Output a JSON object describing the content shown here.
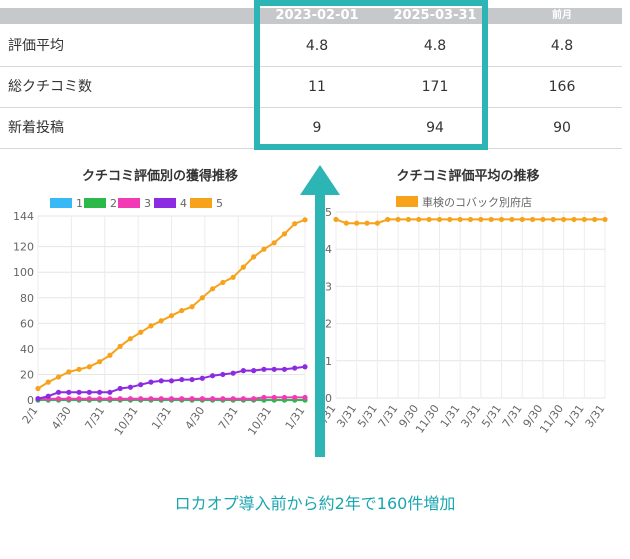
{
  "table": {
    "headers": [
      "2023-02-01",
      "2025-03-31",
      "前月"
    ],
    "rows": [
      {
        "label": "評価平均",
        "values": [
          "4.8",
          "4.8",
          "4.8"
        ]
      },
      {
        "label": "総クチコミ数",
        "values": [
          "11",
          "171",
          "166"
        ]
      },
      {
        "label": "新着投稿",
        "values": [
          "9",
          "94",
          "90"
        ]
      }
    ]
  },
  "caption": "ロカオプ導入前から約2年で160件増加",
  "colors": {
    "highlight": "#2cb5b4",
    "arrow": "#2cb5b4"
  },
  "chart_data": [
    {
      "type": "line",
      "title": "クチコミ評価別の獲得推移",
      "x_ticks": [
        "2/1",
        "4/30",
        "7/31",
        "10/31",
        "1/31",
        "4/30",
        "7/31",
        "10/31",
        "1/31"
      ],
      "ylim": [
        0,
        144
      ],
      "y_ticks": [
        0,
        20,
        40,
        60,
        80,
        100,
        120,
        144
      ],
      "series": [
        {
          "name": "1",
          "color": "#36b9f5",
          "values": [
            0,
            0,
            0,
            0,
            0,
            0,
            0,
            0,
            0,
            0,
            0,
            0,
            0,
            0,
            0,
            0,
            0,
            0,
            0,
            0,
            0,
            0,
            0,
            0,
            0,
            0,
            0
          ]
        },
        {
          "name": "2",
          "color": "#2db84a",
          "values": [
            0,
            0,
            0,
            0,
            0,
            0,
            0,
            0,
            0,
            0,
            0,
            0,
            0,
            0,
            0,
            0,
            0,
            0,
            0,
            0,
            0,
            0,
            0,
            0,
            0,
            0,
            0
          ]
        },
        {
          "name": "3",
          "color": "#f23ab4",
          "values": [
            1,
            1,
            1,
            1,
            1,
            1,
            1,
            1,
            1,
            1,
            1,
            1,
            1,
            1,
            1,
            1,
            1,
            1,
            1,
            1,
            1,
            1,
            2,
            2,
            2,
            2,
            2
          ]
        },
        {
          "name": "4",
          "color": "#8b2be2",
          "values": [
            1,
            3,
            6,
            6,
            6,
            6,
            6,
            6,
            9,
            10,
            12,
            14,
            15,
            15,
            16,
            16,
            17,
            19,
            20,
            21,
            23,
            23,
            24,
            24,
            24,
            25,
            26
          ]
        },
        {
          "name": "5",
          "color": "#f7a21b",
          "values": [
            9,
            14,
            18,
            22,
            24,
            26,
            30,
            35,
            42,
            48,
            53,
            58,
            62,
            66,
            70,
            73,
            80,
            87,
            92,
            96,
            104,
            112,
            118,
            123,
            130,
            138,
            141
          ]
        }
      ]
    },
    {
      "type": "line",
      "title": "クチコミ評価平均の推移",
      "x_ticks": [
        "1/31",
        "3/31",
        "5/31",
        "7/31",
        "9/30",
        "11/30",
        "1/31",
        "3/31",
        "5/31",
        "7/31",
        "9/30",
        "11/30",
        "1/31",
        "3/31"
      ],
      "ylim": [
        0,
        5
      ],
      "y_ticks": [
        0,
        1,
        2,
        3,
        4,
        5
      ],
      "series": [
        {
          "name": "車検のコバック別府店",
          "color": "#f7a21b",
          "values": [
            4.8,
            4.7,
            4.7,
            4.7,
            4.7,
            4.8,
            4.8,
            4.8,
            4.8,
            4.8,
            4.8,
            4.8,
            4.8,
            4.8,
            4.8,
            4.8,
            4.8,
            4.8,
            4.8,
            4.8,
            4.8,
            4.8,
            4.8,
            4.8,
            4.8,
            4.8,
            4.8
          ]
        }
      ]
    }
  ]
}
